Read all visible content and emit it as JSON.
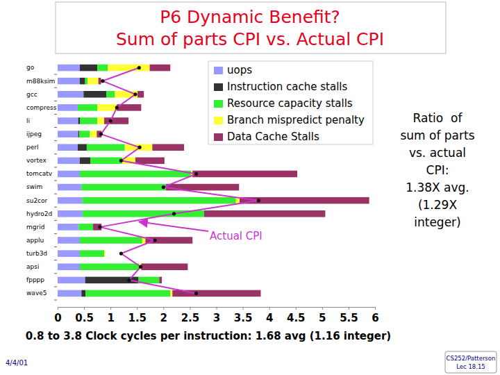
{
  "chart_data": {
    "type": "bar",
    "title": "P6 Dynamic Benefit?",
    "subtitle": "Sum of parts CPI vs. Actual CPI",
    "x_label": "0.8 to 3.8 Clock cycles per instruction: 1.68 avg (1.16 integer)",
    "orientation": "horizontal",
    "stacked": true,
    "grid": false,
    "legend": "top-right",
    "categories": [
      "go",
      "m88ksim",
      "gcc",
      "compress",
      "li",
      "ijpeg",
      "perl",
      "vortex",
      "tomcatv",
      "swim",
      "su2cor",
      "hydro2d",
      "mgrid",
      "applu",
      "turb3d",
      "apsi",
      "fpppp",
      "wave5"
    ],
    "series": [
      {
        "name": "uops",
        "color": "#9999ff",
        "values": [
          0.42,
          0.42,
          0.49,
          0.38,
          0.39,
          0.39,
          0.38,
          0.42,
          0.42,
          0.45,
          0.47,
          0.47,
          0.4,
          0.42,
          0.42,
          0.42,
          0.52,
          0.45
        ]
      },
      {
        "name": "Instruction cache stalls",
        "color": "#333333",
        "values": [
          0.33,
          0.1,
          0.43,
          0,
          0.03,
          0.02,
          0.17,
          0.2,
          0,
          0,
          0,
          0,
          0,
          0,
          0,
          0,
          1.01,
          0.08
        ]
      },
      {
        "name": "Resource capacity stalls",
        "color": "#33ee33",
        "values": [
          0.2,
          0.05,
          0.16,
          0.37,
          0.33,
          0.2,
          0.72,
          0.6,
          2.1,
          1.6,
          2.9,
          2.3,
          0.27,
          1.18,
          0.46,
          1.12,
          0.39,
          1.6
        ]
      },
      {
        "name": "Branch mispredict penalty",
        "color": "#ffff33",
        "values": [
          0.79,
          0.2,
          0.43,
          0.37,
          0.13,
          0.13,
          0.52,
          0.25,
          0.03,
          0,
          0.07,
          0,
          0,
          0.06,
          0.02,
          0.04,
          0,
          0.04
        ]
      },
      {
        "name": "Data Cache Stalls",
        "color": "#993366",
        "values": [
          0.39,
          0.05,
          0.12,
          0.46,
          0.46,
          0.09,
          0.6,
          0.55,
          1.98,
          1.38,
          2.45,
          2.29,
          0.16,
          0.89,
          0,
          0.88,
          0.05,
          1.67
        ]
      },
      {
        "name": "Actual CPI",
        "type": "line",
        "color": "#cc33cc",
        "marker": "circle",
        "line_style": "solid",
        "values": [
          1.54,
          0.85,
          1.47,
          1.12,
          1.0,
          0.82,
          1.55,
          1.2,
          2.62,
          2.0,
          3.8,
          2.2,
          0.8,
          1.84,
          1.2,
          1.57,
          1.35,
          2.62
        ]
      }
    ],
    "xlim": [
      0,
      6
    ],
    "xticks": [
      0,
      0.5,
      1,
      1.5,
      2,
      2.5,
      3,
      3.5,
      4,
      4.5,
      5,
      5.5,
      6
    ],
    "side_note": [
      "Ratio  of",
      "sum of parts",
      "vs. actual",
      "CPI:",
      "1.38X avg.",
      "(1.29X",
      "integer)"
    ],
    "footer": {
      "date": "4/4/01",
      "course": "CS252/Patterson",
      "lecture": "Lec 18.15"
    }
  }
}
